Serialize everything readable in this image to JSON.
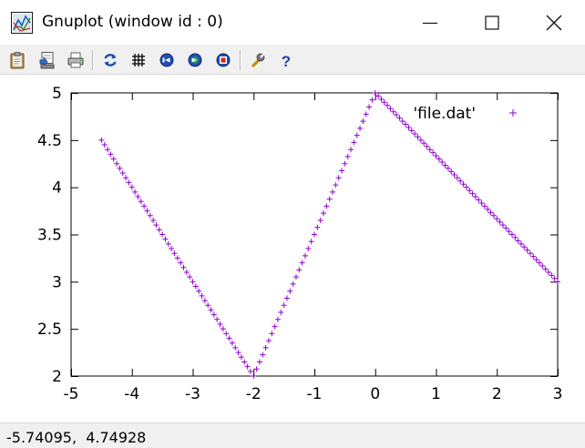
{
  "window": {
    "title": "Gnuplot (window id : 0)",
    "app_icon": "gnuplot-app-icon",
    "controls": [
      "minimize-icon",
      "maximize-icon",
      "close-icon"
    ]
  },
  "toolbar": {
    "buttons": [
      {
        "icon": "clipboard-copy-icon"
      },
      {
        "icon": "save-icon"
      },
      {
        "icon": "print-icon"
      },
      {
        "icon": "replot-icon"
      },
      {
        "icon": "grid-icon"
      },
      {
        "icon": "zoom-previous-icon"
      },
      {
        "icon": "zoom-next-icon"
      },
      {
        "icon": "unzoom-icon"
      },
      {
        "icon": "options-wrench-icon"
      },
      {
        "icon": "help-icon"
      }
    ]
  },
  "status_bar": {
    "coordinates": "-5.74095,  4.74928"
  },
  "colors": {
    "series": "#9400d3",
    "axis": "#000000",
    "toolbar_bg": "#f0f0f0"
  },
  "chart_data": {
    "type": "scatter",
    "title": "",
    "xlabel": "",
    "ylabel": "",
    "xlim": [
      -5,
      3
    ],
    "ylim": [
      2,
      5
    ],
    "x_ticks": [
      "-5",
      "-4",
      "-3",
      "-2",
      "-1",
      "0",
      "1",
      "2",
      "3"
    ],
    "y_ticks": [
      "2",
      "2.5",
      "3",
      "3.5",
      "4",
      "4.5",
      "5"
    ],
    "legend": "top-right",
    "grid": false,
    "marker": "+",
    "series": [
      {
        "name": "'file.dat'",
        "color": "#9400d3",
        "x": [
          -4.5,
          -4.45,
          -4.4,
          -4.35,
          -4.3,
          -4.25,
          -4.2,
          -4.15,
          -4.1,
          -4.05,
          -4.0,
          -3.95,
          -3.9,
          -3.85,
          -3.8,
          -3.75,
          -3.7,
          -3.65,
          -3.6,
          -3.55,
          -3.5,
          -3.45,
          -3.4,
          -3.35,
          -3.3,
          -3.25,
          -3.2,
          -3.15,
          -3.1,
          -3.05,
          -3.0,
          -2.95,
          -2.9,
          -2.85,
          -2.8,
          -2.75,
          -2.7,
          -2.65,
          -2.6,
          -2.55,
          -2.5,
          -2.45,
          -2.4,
          -2.35,
          -2.3,
          -2.25,
          -2.2,
          -2.15,
          -2.1,
          -2.05,
          -2.0,
          -1.95,
          -1.9,
          -1.85,
          -1.8,
          -1.75,
          -1.7,
          -1.65,
          -1.6,
          -1.55,
          -1.5,
          -1.45,
          -1.4,
          -1.35,
          -1.3,
          -1.25,
          -1.2,
          -1.15,
          -1.1,
          -1.05,
          -1.0,
          -0.95,
          -0.9,
          -0.85,
          -0.8,
          -0.75,
          -0.7,
          -0.65,
          -0.6,
          -0.55,
          -0.5,
          -0.45,
          -0.4,
          -0.35,
          -0.3,
          -0.25,
          -0.2,
          -0.15,
          -0.1,
          -0.05,
          0.0,
          0.05,
          0.1,
          0.15,
          0.2,
          0.25,
          0.3,
          0.35,
          0.4,
          0.45,
          0.5,
          0.55,
          0.6,
          0.65,
          0.7,
          0.75,
          0.8,
          0.85,
          0.9,
          0.95,
          1.0,
          1.05,
          1.1,
          1.15,
          1.2,
          1.25,
          1.3,
          1.35,
          1.4,
          1.45,
          1.5,
          1.55,
          1.6,
          1.65,
          1.7,
          1.75,
          1.8,
          1.85,
          1.9,
          1.95,
          2.0,
          2.05,
          2.1,
          2.15,
          2.2,
          2.25,
          2.3,
          2.35,
          2.4,
          2.45,
          2.5,
          2.55,
          2.6,
          2.65,
          2.7,
          2.75,
          2.8,
          2.85,
          2.9,
          2.95,
          3.0
        ],
        "y": [
          4.5,
          4.45,
          4.4,
          4.35,
          4.3,
          4.25,
          4.2,
          4.15,
          4.1,
          4.05,
          4.0,
          3.95,
          3.9,
          3.85,
          3.8,
          3.75,
          3.7,
          3.65,
          3.6,
          3.55,
          3.5,
          3.45,
          3.4,
          3.35,
          3.3,
          3.25,
          3.2,
          3.15,
          3.1,
          3.05,
          3.0,
          2.95,
          2.9,
          2.85,
          2.8,
          2.75,
          2.7,
          2.65,
          2.6,
          2.55,
          2.5,
          2.45,
          2.4,
          2.35,
          2.3,
          2.25,
          2.2,
          2.15,
          2.1,
          2.05,
          2.0,
          2.075,
          2.15,
          2.225,
          2.3,
          2.375,
          2.45,
          2.525,
          2.6,
          2.675,
          2.75,
          2.825,
          2.9,
          2.975,
          3.05,
          3.125,
          3.2,
          3.275,
          3.35,
          3.425,
          3.5,
          3.575,
          3.65,
          3.725,
          3.8,
          3.875,
          3.95,
          4.025,
          4.1,
          4.175,
          4.25,
          4.325,
          4.4,
          4.475,
          4.55,
          4.625,
          4.7,
          4.775,
          4.85,
          4.925,
          5.0,
          4.967,
          4.933,
          4.9,
          4.867,
          4.833,
          4.8,
          4.767,
          4.733,
          4.7,
          4.667,
          4.633,
          4.6,
          4.567,
          4.533,
          4.5,
          4.467,
          4.433,
          4.4,
          4.367,
          4.333,
          4.3,
          4.267,
          4.233,
          4.2,
          4.167,
          4.133,
          4.1,
          4.067,
          4.033,
          4.0,
          3.967,
          3.933,
          3.9,
          3.867,
          3.833,
          3.8,
          3.767,
          3.733,
          3.7,
          3.667,
          3.633,
          3.6,
          3.567,
          3.533,
          3.5,
          3.467,
          3.433,
          3.4,
          3.367,
          3.333,
          3.3,
          3.267,
          3.233,
          3.2,
          3.167,
          3.133,
          3.1,
          3.067,
          3.033,
          3.0
        ]
      }
    ]
  }
}
